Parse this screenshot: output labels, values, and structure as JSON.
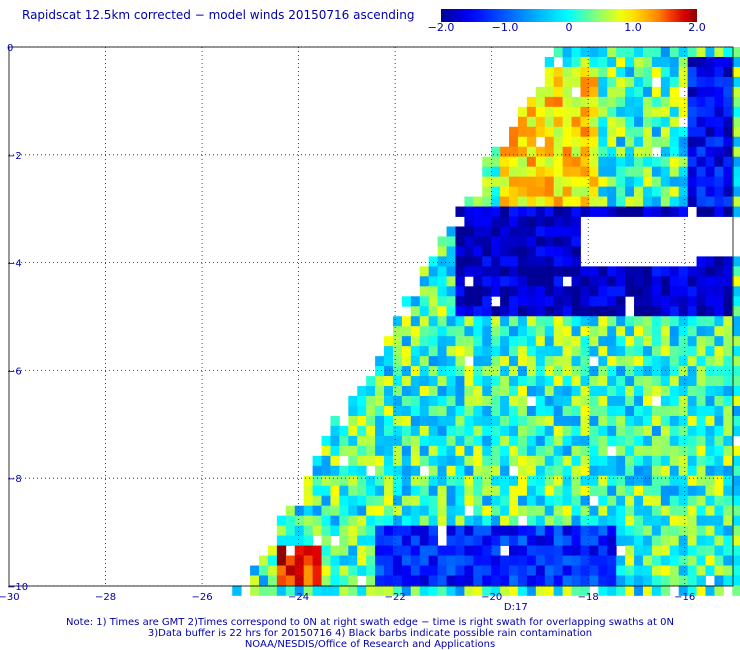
{
  "title": "Rapidscat 12.5km corrected − model winds 20150716 ascending",
  "colorbar": {
    "min": -2.0,
    "max": 2.0,
    "tick_labels": [
      "−2.0",
      "−1.0",
      "0",
      "1.0",
      "2.0"
    ],
    "tick_values": [
      -2.0,
      -1.0,
      0.0,
      1.0,
      2.0
    ],
    "colormap": "blue-cyan-yellow-red"
  },
  "chart_data": {
    "type": "heatmap",
    "title": "Rapidscat 12.5km corrected − model winds 20150716 ascending",
    "xlim": [
      -30,
      -15
    ],
    "ylim": [
      -10,
      0
    ],
    "x_ticks": [
      -30,
      -28,
      -26,
      -24,
      -22,
      -20,
      -18,
      -16
    ],
    "x_tick_labels": [
      "−30",
      "−28",
      "−26",
      "−24",
      "−22",
      "−20",
      "−18",
      "−16"
    ],
    "y_ticks": [
      0,
      -2,
      -4,
      -6,
      -8,
      -10
    ],
    "y_tick_labels": [
      "0",
      "−2",
      "−4",
      "−6",
      "−8",
      "−10"
    ],
    "grid": true,
    "value_range": [
      -2.0,
      2.0
    ],
    "swath_time_label": "D:17",
    "swath_time_label_x": -19.5,
    "regions": [
      {
        "name": "strong-positive",
        "lon": [
          -19.3,
          -18.3
        ],
        "lat": [
          -3.0,
          -0.8
        ],
        "value": 1.9
      },
      {
        "name": "positive-band",
        "lon": [
          -19.8,
          -17.8
        ],
        "lat": [
          -3.1,
          -0.3
        ],
        "value": 1.0
      },
      {
        "name": "negative-band-north",
        "lon": [
          -20.8,
          -15.0
        ],
        "lat": [
          -5.0,
          -3.0
        ],
        "value": -1.8
      },
      {
        "name": "negative-band-east",
        "lon": [
          -16.0,
          -15.0
        ],
        "lat": [
          -3.0,
          -0.2
        ],
        "value": -1.5
      },
      {
        "name": "positive-southwest",
        "lon": [
          -24.5,
          -23.6
        ],
        "lat": [
          -10.0,
          -9.2
        ],
        "value": 1.7
      },
      {
        "name": "negative-south",
        "lon": [
          -22.5,
          -17.5
        ],
        "lat": [
          -10.0,
          -8.8
        ],
        "value": -1.3
      }
    ]
  },
  "notes": [
    "Note: 1) Times are GMT 2)Times correspond to 0N at right swath edge − time is right swath for overlapping swaths at 0N",
    "3)Data buffer is 22 hrs for 20150716 4) Black barbs indicate possible rain contamination",
    "NOAA/NESDIS/Office of Research and Applications"
  ]
}
